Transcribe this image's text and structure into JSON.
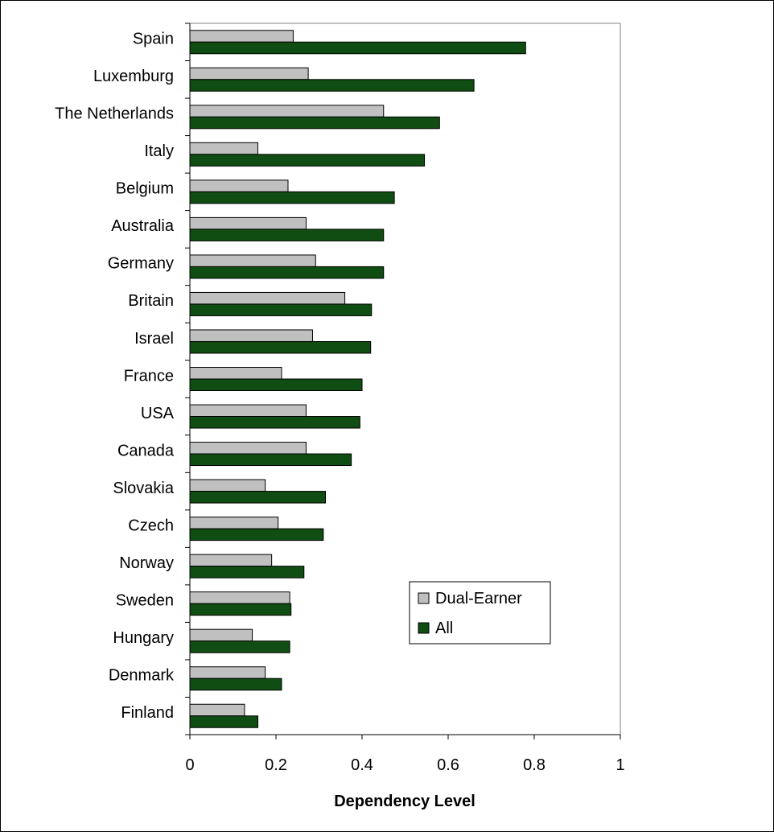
{
  "chart_data": {
    "type": "bar",
    "orientation": "horizontal",
    "categories": [
      "Spain",
      "Luxemburg",
      "The Netherlands",
      "Italy",
      "Belgium",
      "Australia",
      "Germany",
      "Britain",
      "Israel",
      "France",
      "USA",
      "Canada",
      "Slovakia",
      "Czech",
      "Norway",
      "Sweden",
      "Hungary",
      "Denmark",
      "Finland"
    ],
    "series": [
      {
        "name": "Dual-Earner",
        "color": "#c0c0c0",
        "values": [
          0.24,
          0.275,
          0.45,
          0.158,
          0.228,
          0.27,
          0.292,
          0.36,
          0.285,
          0.213,
          0.27,
          0.27,
          0.175,
          0.205,
          0.19,
          0.232,
          0.145,
          0.175,
          0.127
        ]
      },
      {
        "name": "All",
        "color": "#0f4d12",
        "values": [
          0.78,
          0.66,
          0.58,
          0.545,
          0.475,
          0.45,
          0.45,
          0.422,
          0.42,
          0.4,
          0.395,
          0.375,
          0.315,
          0.31,
          0.265,
          0.235,
          0.232,
          0.213,
          0.158
        ]
      }
    ],
    "xlabel": "Dependency Level",
    "ylabel": "",
    "title": "",
    "xlim": [
      0,
      1
    ],
    "xticks": [
      "0",
      "0.2",
      "0.4",
      "0.6",
      "0.8",
      "1"
    ],
    "grid": false,
    "legend": "right"
  }
}
